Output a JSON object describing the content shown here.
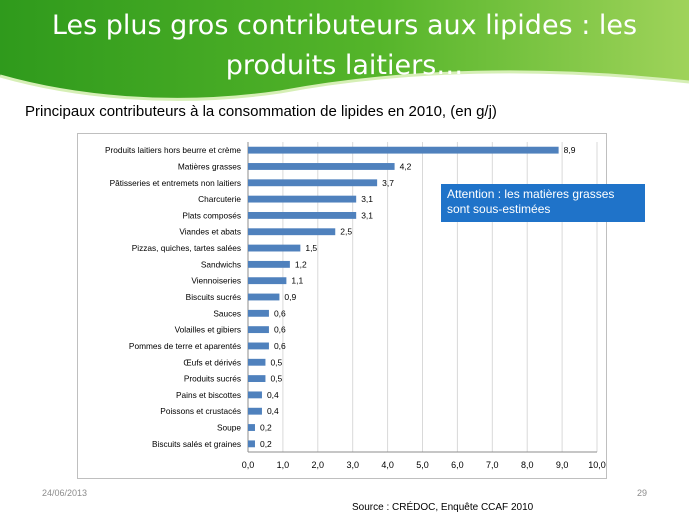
{
  "slide": {
    "title_line1": "Les plus gros contributeurs aux lipides : les",
    "title_line2": "produits laitiers…",
    "note": "Attention : les matières grasses sont sous-estimées",
    "date": "24/06/2013",
    "page_number": "29",
    "source": "Source : CRÉDOC, Enquête  CCAF 2010"
  },
  "colors": {
    "header_green_dark": "#2f9a1c",
    "header_green_light": "#9fd35a",
    "bar_blue": "#4f81bd",
    "note_blue": "#1f73c9"
  },
  "chart_data": {
    "type": "bar",
    "orientation": "horizontal",
    "title": "Principaux contributeurs à la consommation de lipides en 2010, (en g/j)",
    "categories": [
      "Produits laitiers hors beurre et crème",
      "Matières grasses",
      "Pâtisseries et entremets non laitiers",
      "Charcuterie",
      "Plats composés",
      "Viandes et abats",
      "Pizzas, quiches, tartes salées",
      "Sandwichs",
      "Viennoiseries",
      "Biscuits sucrés",
      "Sauces",
      "Volailles et gibiers",
      "Pommes de terre et aparentés",
      "Œufs et dérivés",
      "Produits sucrés",
      "Pains et biscottes",
      "Poissons et crustacés",
      "Soupe",
      "Biscuits salés et graines"
    ],
    "values": [
      8.9,
      4.2,
      3.7,
      3.1,
      3.1,
      2.5,
      1.5,
      1.2,
      1.1,
      0.9,
      0.6,
      0.6,
      0.6,
      0.5,
      0.5,
      0.4,
      0.4,
      0.2,
      0.2
    ],
    "value_labels": [
      "8,9",
      "4,2",
      "3,7",
      "3,1",
      "3,1",
      "2,5",
      "1,5",
      "1,2",
      "1,1",
      "0,9",
      "0,6",
      "0,6",
      "0,6",
      "0,5",
      "0,5",
      "0,4",
      "0,4",
      "0,2",
      "0,2"
    ],
    "xlim": [
      0,
      10
    ],
    "x_ticks": [
      0,
      1,
      2,
      3,
      4,
      5,
      6,
      7,
      8,
      9,
      10
    ],
    "x_tick_labels": [
      "0,0",
      "1,0",
      "2,0",
      "3,0",
      "4,0",
      "5,0",
      "6,0",
      "7,0",
      "8,0",
      "9,0",
      "10,0"
    ],
    "grid": true,
    "legend": "none",
    "xlabel": "",
    "ylabel": ""
  }
}
